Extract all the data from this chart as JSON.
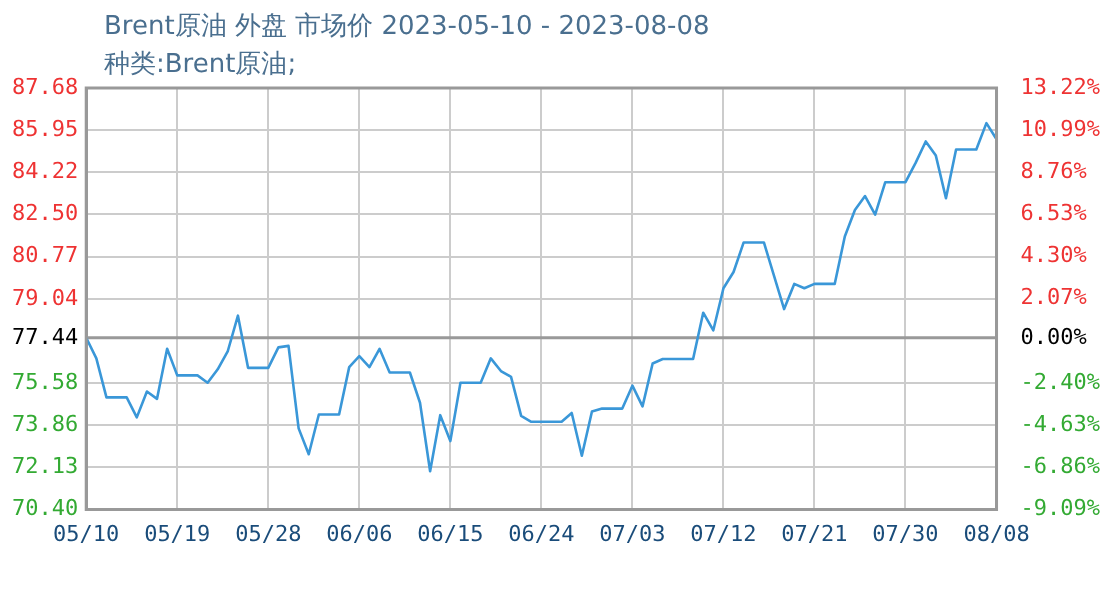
{
  "chart_data": {
    "type": "line",
    "title": "Brent原油 外盘 市场价 2023-05-10 - 2023-08-08",
    "subtitle": "种类:Brent原油;",
    "x": [
      "--05-10",
      "--05-11",
      "--05-12",
      "--05-14",
      "--05-15",
      "--05-16",
      "--05-17",
      "--05-18",
      "--05-19",
      "--05-21",
      "--05-22",
      "--05-23",
      "--05-24",
      "--05-25",
      "--05-26",
      "--05-28",
      "--05-29",
      "--05-30",
      "--05-31",
      "--06-01",
      "--06-02",
      "--06-04",
      "--06-05",
      "--06-06",
      "--06-07",
      "--06-08",
      "--06-09",
      "--06-11",
      "--06-12",
      "--06-13",
      "--06-14",
      "--06-15",
      "--06-16",
      "--06-18",
      "--06-19",
      "--06-20",
      "--06-21",
      "--06-22",
      "--06-23",
      "--06-26",
      "--06-27",
      "--06-28",
      "--06-29",
      "--06-30",
      "--07-02",
      "--07-03",
      "--07-04",
      "--07-05",
      "--07-06",
      "--07-09",
      "--07-10",
      "--07-11",
      "--07-12",
      "--07-13",
      "--07-14",
      "--07-16",
      "--07-18",
      "--07-19",
      "--07-20",
      "--07-21",
      "--07-23",
      "--07-24",
      "--07-25",
      "--07-26",
      "--07-27",
      "--07-28",
      "--07-30",
      "--07-31",
      "--08-01",
      "--08-02",
      "--08-03",
      "--08-04",
      "--08-06",
      "--08-07",
      "--08-08"
    ],
    "series": [
      {
        "color": "#3a97d8",
        "values": [
          77.44,
          76.6,
          75.0,
          75.0,
          74.18,
          75.24,
          74.94,
          76.99,
          75.9,
          75.9,
          75.6,
          76.15,
          76.9,
          78.35,
          76.21,
          76.21,
          77.05,
          77.11,
          73.73,
          72.67,
          74.3,
          74.3,
          76.24,
          76.69,
          76.24,
          76.99,
          76.02,
          76.02,
          74.78,
          71.97,
          74.27,
          73.21,
          75.6,
          75.6,
          76.6,
          76.08,
          75.84,
          74.24,
          74.0,
          74.0,
          74.36,
          72.61,
          74.42,
          74.54,
          74.54,
          75.48,
          74.63,
          76.39,
          76.57,
          76.57,
          78.47,
          77.75,
          79.47,
          80.14,
          81.35,
          81.35,
          78.62,
          79.65,
          79.47,
          79.65,
          79.65,
          81.59,
          82.68,
          83.25,
          82.49,
          83.82,
          83.82,
          84.61,
          85.49,
          84.91,
          83.16,
          85.16,
          85.16,
          86.24,
          85.58
        ]
      }
    ],
    "xlim": [
      "--05-10",
      "--08-08"
    ],
    "xticks": [
      {
        "value": "--05-10",
        "label": "05/10"
      },
      {
        "value": "--05-19",
        "label": "05/19"
      },
      {
        "value": "--05-28",
        "label": "05/28"
      },
      {
        "value": "--06-06",
        "label": "06/06"
      },
      {
        "value": "--06-15",
        "label": "06/15"
      },
      {
        "value": "--06-24",
        "label": "06/24"
      },
      {
        "value": "--07-03",
        "label": "07/03"
      },
      {
        "value": "--07-12",
        "label": "07/12"
      },
      {
        "value": "--07-21",
        "label": "07/21"
      },
      {
        "value": "--07-30",
        "label": "07/30"
      },
      {
        "value": "--08-08",
        "label": "08/08"
      }
    ],
    "ylim": [
      70.4,
      87.68
    ],
    "yticks": [
      {
        "value": 70.4,
        "label": "70.40"
      },
      72.13,
      73.86,
      75.58,
      77.44,
      79.04,
      80.77,
      {
        "value": 82.5,
        "label": "82.50"
      },
      84.22,
      85.95,
      87.68
    ],
    "y2lim": [
      -9.09,
      13.22
    ],
    "y2ticks": [
      {
        "value": -9.09,
        "label": "-9.09%"
      },
      {
        "value": -6.86,
        "label": "-6.86%"
      },
      {
        "value": -4.63,
        "label": "-4.63%"
      },
      {
        "value": -2.4,
        "label": "-2.40%"
      },
      {
        "value": 0,
        "label": "0.00%"
      },
      {
        "value": 2.07,
        "label": "2.07%"
      },
      {
        "value": 4.3,
        "label": "4.30%"
      },
      {
        "value": 6.53,
        "label": "6.53%"
      },
      {
        "value": 8.76,
        "label": "8.76%"
      },
      {
        "value": 10.99,
        "label": "10.99%"
      },
      {
        "value": 13.22,
        "label": "13.22%"
      }
    ],
    "ref_lines": [
      {
        "axis": "y",
        "value": 77.44,
        "color": "#999999"
      }
    ],
    "grid": true,
    "legend": false,
    "marker": "none",
    "line_style": "solid"
  }
}
